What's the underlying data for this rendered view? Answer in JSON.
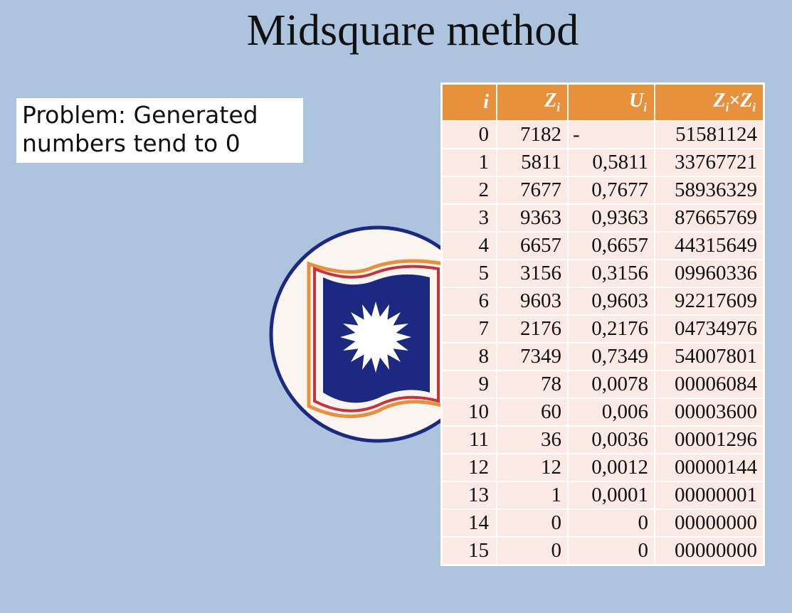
{
  "slide": {
    "title": "Midsquare method",
    "problem_text": "Problem: Generated numbers tend to 0"
  },
  "table": {
    "headers": [
      {
        "base": "i",
        "sub": ""
      },
      {
        "base": "Z",
        "sub": "i"
      },
      {
        "base": "U",
        "sub": "i"
      },
      {
        "base": "Z",
        "sub": "i",
        "op": "×",
        "base2": "Z",
        "sub2": "i"
      }
    ],
    "rows": [
      [
        "0",
        "7182",
        "-",
        "51581124"
      ],
      [
        "1",
        "5811",
        "0,5811",
        "33767721"
      ],
      [
        "2",
        "7677",
        "0,7677",
        "58936329"
      ],
      [
        "3",
        "9363",
        "0,9363",
        "87665769"
      ],
      [
        "4",
        "6657",
        "0,6657",
        "44315649"
      ],
      [
        "5",
        "3156",
        "0,3156",
        "09960336"
      ],
      [
        "6",
        "9603",
        "0,9603",
        "92217609"
      ],
      [
        "7",
        "2176",
        "0,2176",
        "04734976"
      ],
      [
        "8",
        "7349",
        "0,7349",
        "54007801"
      ],
      [
        "9",
        "78",
        "0,0078",
        "00006084"
      ],
      [
        "10",
        "60",
        "0,006",
        "00003600"
      ],
      [
        "11",
        "36",
        "0,0036",
        "00001296"
      ],
      [
        "12",
        "12",
        "0,0012",
        "00000144"
      ],
      [
        "13",
        "1",
        "0,0001",
        "00000001"
      ],
      [
        "14",
        "0",
        "0",
        "00000000"
      ],
      [
        "15",
        "0",
        "0",
        "00000000"
      ]
    ]
  },
  "colors": {
    "background": "#adc4de",
    "header": "#e8913d",
    "row": "#fbe9e3",
    "logo_blue": "#1b2a80",
    "logo_orange": "#e8913d",
    "logo_red": "#c8323a"
  },
  "logo": {
    "icon": "university-book-sun-logo"
  }
}
